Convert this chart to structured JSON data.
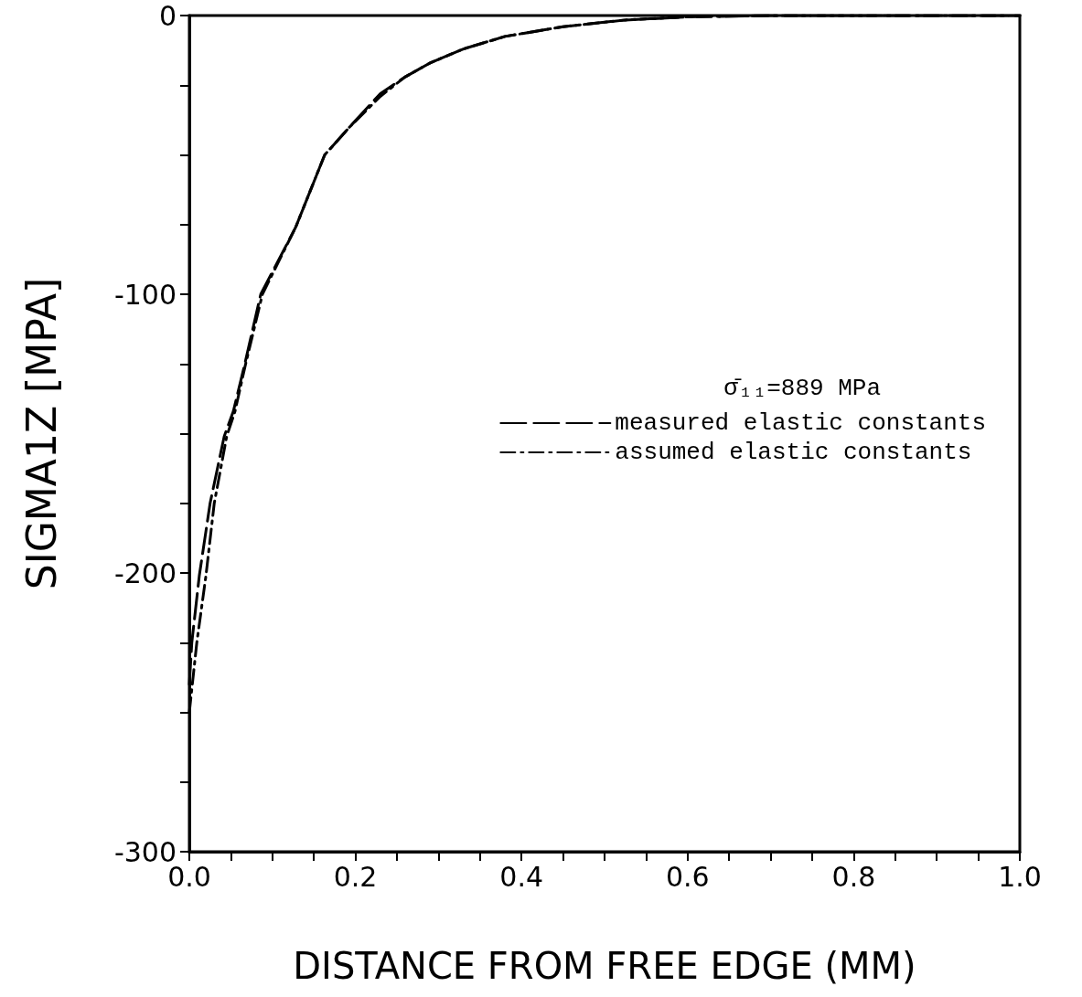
{
  "chart_data": {
    "type": "line",
    "xlabel": "DISTANCE FROM FREE EDGE (MM)",
    "ylabel": "SIGMA1Z [MPA]",
    "legend_title": "σ̄₁₁=889 MPa",
    "legend": "right",
    "grid": false,
    "marker": "none",
    "xlim": [
      0,
      1
    ],
    "xticks": [
      {
        "value": 0,
        "label": "0.0"
      },
      {
        "value": 0.05,
        "label": null
      },
      {
        "value": 0.1,
        "label": null
      },
      {
        "value": 0.15,
        "label": null
      },
      {
        "value": 0.2,
        "label": "0.2"
      },
      {
        "value": 0.25,
        "label": null
      },
      {
        "value": 0.3,
        "label": null
      },
      {
        "value": 0.35,
        "label": null
      },
      {
        "value": 0.4,
        "label": "0.4"
      },
      {
        "value": 0.45,
        "label": null
      },
      {
        "value": 0.5,
        "label": null
      },
      {
        "value": 0.55,
        "label": null
      },
      {
        "value": 0.6,
        "label": "0.6"
      },
      {
        "value": 0.65,
        "label": null
      },
      {
        "value": 0.7,
        "label": null
      },
      {
        "value": 0.75,
        "label": null
      },
      {
        "value": 0.8,
        "label": "0.8"
      },
      {
        "value": 0.85,
        "label": null
      },
      {
        "value": 0.9,
        "label": null
      },
      {
        "value": 0.95,
        "label": null
      },
      {
        "value": 1,
        "label": "1.0"
      }
    ],
    "ylim": [
      -300,
      0
    ],
    "yticks": [
      -300,
      {
        "value": -275,
        "label": null
      },
      {
        "value": -250,
        "label": null
      },
      {
        "value": -225,
        "label": null
      },
      -200,
      {
        "value": -175,
        "label": null
      },
      {
        "value": -150,
        "label": null
      },
      {
        "value": -125,
        "label": null
      },
      -100,
      {
        "value": -75,
        "label": null
      },
      {
        "value": -50,
        "label": null
      },
      {
        "value": -25,
        "label": null
      },
      0
    ],
    "series": [
      {
        "name": "measured elastic constants",
        "color": "#000000",
        "line_style": "dashed",
        "x": [
          0,
          0.003,
          0.012,
          0.025,
          0.042,
          0.053,
          0.066,
          0.086,
          0.128,
          0.163,
          0.193,
          0.23,
          0.26,
          0.29,
          0.33,
          0.38,
          0.45,
          0.525,
          0.6,
          0.7,
          0.8,
          0.9,
          1
        ],
        "values": [
          -240,
          -225,
          -201,
          -175,
          -151,
          -142,
          -126,
          -100,
          -76,
          -50,
          -40,
          -28,
          -22,
          -17,
          -12,
          -7.5,
          -4,
          -1.6,
          -0.5,
          0,
          0,
          0,
          0
        ]
      },
      {
        "name": "assumed elastic constants",
        "color": "#000000",
        "line_style": "dashdot",
        "x": [
          0,
          0.009,
          0.02,
          0.03,
          0.045,
          0.055,
          0.067,
          0.088,
          0.128,
          0.163,
          0.193,
          0.23,
          0.26,
          0.29,
          0.33,
          0.38,
          0.45,
          0.525,
          0.6,
          0.7,
          0.8,
          0.9,
          1
        ],
        "values": [
          -250,
          -225,
          -201,
          -175,
          -151,
          -142,
          -126,
          -100,
          -76,
          -50,
          -40,
          -29,
          -22,
          -17,
          -12,
          -7.5,
          -4,
          -1.6,
          -0.5,
          0,
          0,
          0,
          0
        ]
      }
    ]
  }
}
